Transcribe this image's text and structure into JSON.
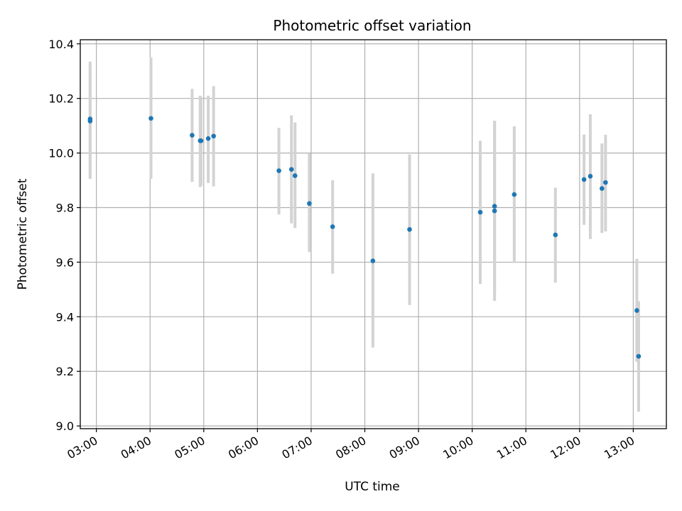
{
  "chart_data": {
    "type": "scatter",
    "title": "Photometric offset variation",
    "xlabel": "UTC time",
    "ylabel": "Photometric offset",
    "grid": true,
    "xlim": [
      "02:42",
      "13:37"
    ],
    "ylim": [
      8.99,
      10.415
    ],
    "x_ticks": [
      "03:00",
      "04:00",
      "05:00",
      "06:00",
      "07:00",
      "08:00",
      "09:00",
      "10:00",
      "11:00",
      "12:00",
      "13:00"
    ],
    "y_ticks": [
      9.0,
      9.2,
      9.4,
      9.6,
      9.8,
      10.0,
      10.2,
      10.4
    ],
    "y_tick_labels": [
      "9.0",
      "9.2",
      "9.4",
      "9.6",
      "9.8",
      "10.0",
      "10.2",
      "10.4"
    ],
    "point_color": "#1f77b4",
    "errorbar_color": "#d3d3d3",
    "points": [
      {
        "t": "02:53",
        "y": 10.125,
        "lo": 9.905,
        "hi": 10.335
      },
      {
        "t": "02:53",
        "y": 10.117,
        "lo": 9.91,
        "hi": 10.32
      },
      {
        "t": "04:01",
        "y": 10.127,
        "lo": 9.905,
        "hi": 10.35
      },
      {
        "t": "04:47",
        "y": 10.065,
        "lo": 9.895,
        "hi": 10.235
      },
      {
        "t": "04:56",
        "y": 10.045,
        "lo": 9.875,
        "hi": 10.21
      },
      {
        "t": "04:57",
        "y": 10.045,
        "lo": 9.88,
        "hi": 10.205
      },
      {
        "t": "05:05",
        "y": 10.053,
        "lo": 9.89,
        "hi": 10.21
      },
      {
        "t": "05:11",
        "y": 10.062,
        "lo": 9.878,
        "hi": 10.245
      },
      {
        "t": "06:24",
        "y": 9.935,
        "lo": 9.775,
        "hi": 10.092
      },
      {
        "t": "06:38",
        "y": 9.94,
        "lo": 9.742,
        "hi": 10.138
      },
      {
        "t": "06:42",
        "y": 9.917,
        "lo": 9.725,
        "hi": 10.112
      },
      {
        "t": "06:58",
        "y": 9.815,
        "lo": 9.637,
        "hi": 9.998
      },
      {
        "t": "07:24",
        "y": 9.73,
        "lo": 9.558,
        "hi": 9.9
      },
      {
        "t": "08:09",
        "y": 9.605,
        "lo": 9.287,
        "hi": 9.925
      },
      {
        "t": "08:50",
        "y": 9.72,
        "lo": 9.443,
        "hi": 9.995
      },
      {
        "t": "10:09",
        "y": 9.783,
        "lo": 9.52,
        "hi": 10.045
      },
      {
        "t": "10:25",
        "y": 9.805,
        "lo": 9.492,
        "hi": 10.118
      },
      {
        "t": "10:25",
        "y": 9.788,
        "lo": 9.458,
        "hi": 10.118
      },
      {
        "t": "10:47",
        "y": 9.848,
        "lo": 9.597,
        "hi": 10.098
      },
      {
        "t": "11:33",
        "y": 9.7,
        "lo": 9.525,
        "hi": 9.873
      },
      {
        "t": "12:05",
        "y": 9.903,
        "lo": 9.737,
        "hi": 10.068
      },
      {
        "t": "12:12",
        "y": 9.915,
        "lo": 9.685,
        "hi": 10.142
      },
      {
        "t": "12:25",
        "y": 9.87,
        "lo": 9.707,
        "hi": 10.035
      },
      {
        "t": "12:29",
        "y": 9.892,
        "lo": 9.713,
        "hi": 10.067
      },
      {
        "t": "13:04",
        "y": 9.423,
        "lo": 9.235,
        "hi": 9.612
      },
      {
        "t": "13:06",
        "y": 9.255,
        "lo": 9.052,
        "hi": 9.457
      }
    ]
  }
}
